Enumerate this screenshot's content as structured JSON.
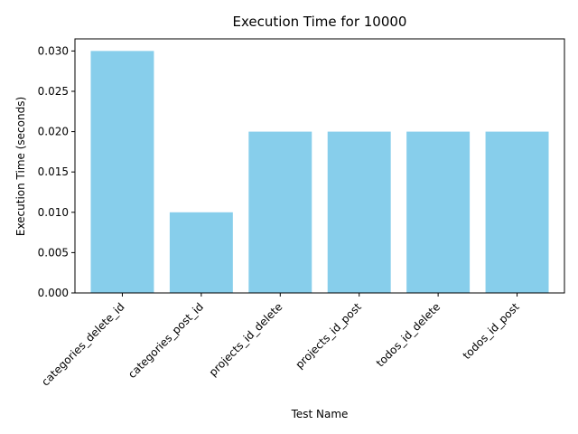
{
  "chart_data": {
    "type": "bar",
    "title": "Execution Time for 10000",
    "xlabel": "Test Name",
    "ylabel": "Execution Time (seconds)",
    "categories": [
      "categories_delete_id",
      "categories_post_id",
      "projects_id_delete",
      "projects_id_post",
      "todos_id_delete",
      "todos_id_post"
    ],
    "values": [
      0.03,
      0.01,
      0.02,
      0.02,
      0.02,
      0.02
    ],
    "ylim": [
      0,
      0.0315
    ],
    "yticks": [
      "0.000",
      "0.005",
      "0.010",
      "0.015",
      "0.020",
      "0.025",
      "0.030"
    ],
    "bar_color": "#87ceeb",
    "grid": false,
    "legend": "none"
  }
}
